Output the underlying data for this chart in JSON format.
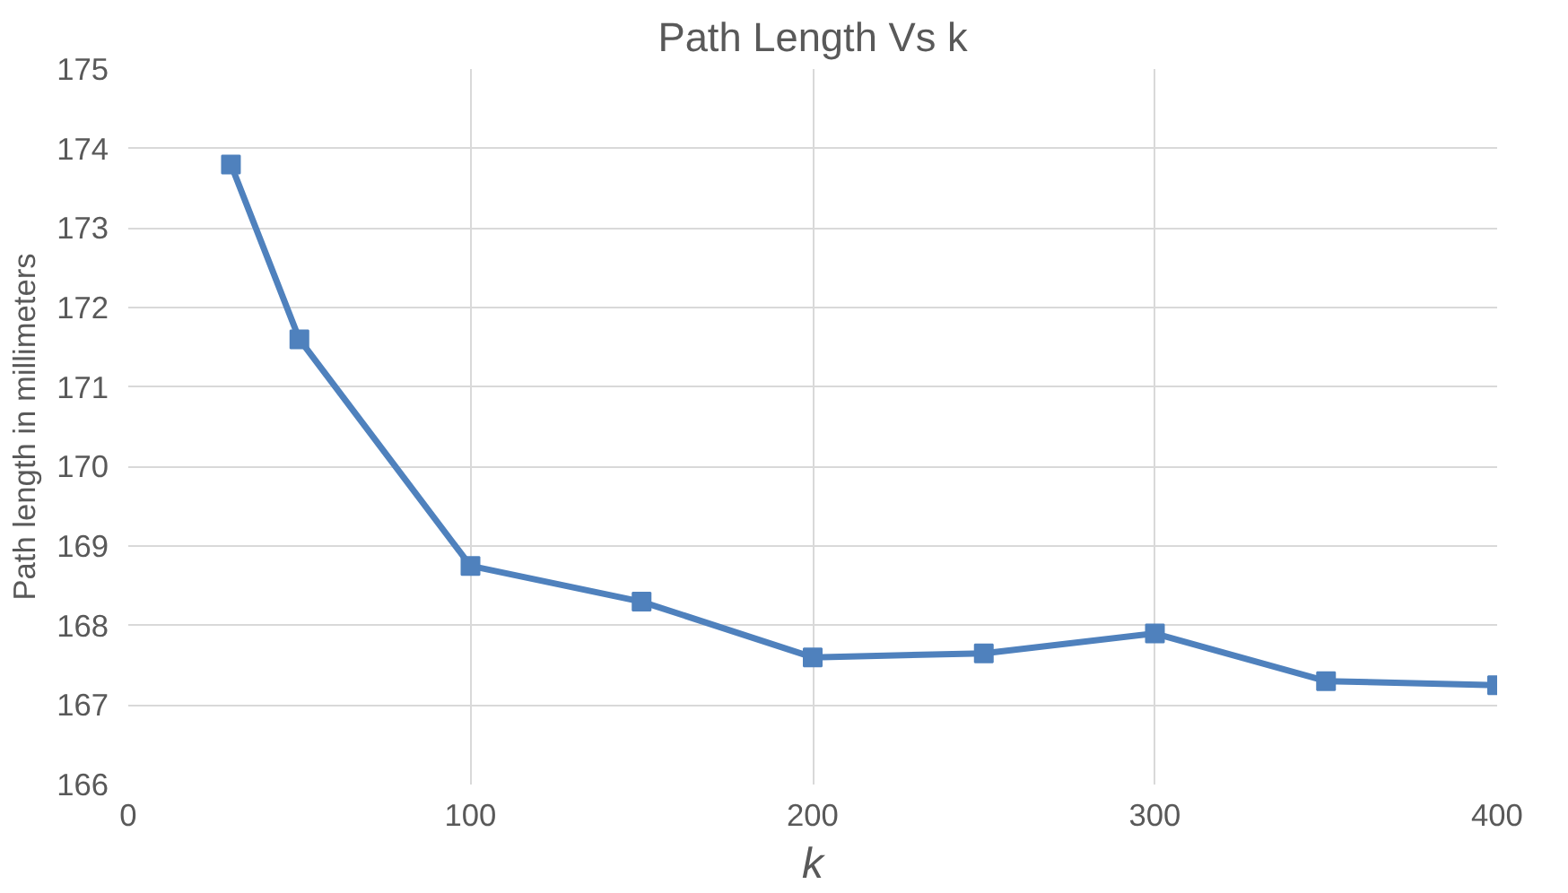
{
  "chart_data": {
    "type": "line",
    "title": "Path Length Vs k",
    "xlabel": "k",
    "ylabel": "Path length in millimeters",
    "x": [
      30,
      50,
      100,
      150,
      200,
      250,
      300,
      350,
      400
    ],
    "series": [
      {
        "color": "#4f81bd",
        "values": [
          173.8,
          171.6,
          168.75,
          168.3,
          167.6,
          167.65,
          167.9,
          167.3,
          167.25
        ]
      }
    ],
    "xlim": [
      0,
      400
    ],
    "xticks": [
      0,
      100,
      200,
      300,
      400
    ],
    "ylim": [
      166,
      175
    ],
    "yticks": [
      166,
      167,
      168,
      169,
      170,
      171,
      172,
      173,
      174,
      175
    ],
    "grid": true,
    "marker": "square",
    "line_style": "solid"
  }
}
